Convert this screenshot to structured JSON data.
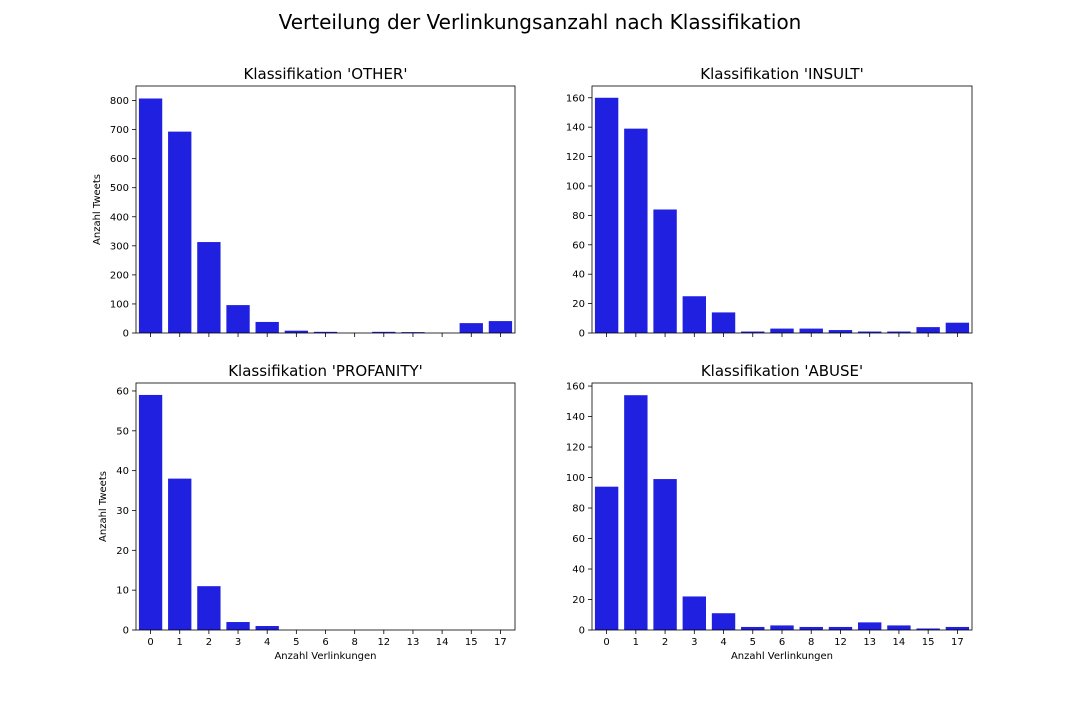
{
  "suptitle": "Verteilung der Verlinkungsanzahl nach Klassifikation",
  "bar_color": "#2020e0",
  "chart_data": [
    {
      "type": "bar",
      "title": "Klassifikation 'OTHER'",
      "ylabel": "Anzahl Tweets",
      "xlabel": "",
      "categories": [
        "0",
        "1",
        "2",
        "3",
        "4",
        "5",
        "6",
        "8",
        "12",
        "13",
        "14",
        "15",
        "17"
      ],
      "values": [
        807,
        693,
        313,
        96,
        38,
        8,
        4,
        0,
        4,
        3,
        0,
        34,
        41
      ],
      "ylim": [
        0,
        850
      ],
      "yticks": [
        0,
        100,
        200,
        300,
        400,
        500,
        600,
        700,
        800
      ],
      "show_xticklabels": false
    },
    {
      "type": "bar",
      "title": "Klassifikation 'INSULT'",
      "ylabel": "",
      "xlabel": "",
      "categories": [
        "0",
        "1",
        "2",
        "3",
        "4",
        "5",
        "6",
        "8",
        "12",
        "13",
        "14",
        "15",
        "17"
      ],
      "values": [
        160,
        139,
        84,
        25,
        14,
        1,
        3,
        3,
        2,
        1,
        1,
        4,
        7
      ],
      "ylim": [
        0,
        168
      ],
      "yticks": [
        0,
        20,
        40,
        60,
        80,
        100,
        120,
        140,
        160
      ],
      "show_xticklabels": false
    },
    {
      "type": "bar",
      "title": "Klassifikation 'PROFANITY'",
      "ylabel": "Anzahl Tweets",
      "xlabel": "Anzahl Verlinkungen",
      "categories": [
        "0",
        "1",
        "2",
        "3",
        "4",
        "5",
        "6",
        "8",
        "12",
        "13",
        "14",
        "15",
        "17"
      ],
      "values": [
        59,
        38,
        11,
        2,
        1,
        0,
        0,
        0,
        0,
        0,
        0,
        0,
        0
      ],
      "ylim": [
        0,
        62
      ],
      "yticks": [
        0,
        10,
        20,
        30,
        40,
        50,
        60
      ],
      "show_xticklabels": true
    },
    {
      "type": "bar",
      "title": "Klassifikation 'ABUSE'",
      "ylabel": "",
      "xlabel": "Anzahl Verlinkungen",
      "categories": [
        "0",
        "1",
        "2",
        "3",
        "4",
        "5",
        "6",
        "8",
        "12",
        "13",
        "14",
        "15",
        "17"
      ],
      "values": [
        94,
        154,
        99,
        22,
        11,
        2,
        3,
        2,
        2,
        5,
        3,
        1,
        2
      ],
      "ylim": [
        0,
        162
      ],
      "yticks": [
        0,
        20,
        40,
        60,
        80,
        100,
        120,
        140,
        160
      ],
      "show_xticklabels": true
    }
  ]
}
